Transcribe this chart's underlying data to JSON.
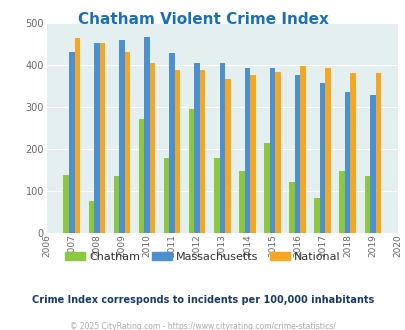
{
  "title": "Chatham Violent Crime Index",
  "title_color": "#1a6fba",
  "years": [
    2007,
    2008,
    2009,
    2010,
    2011,
    2012,
    2013,
    2014,
    2015,
    2016,
    2017,
    2018,
    2019
  ],
  "chatham": [
    137,
    76,
    135,
    272,
    178,
    296,
    178,
    147,
    214,
    120,
    82,
    147,
    136
  ],
  "massachusetts": [
    430,
    452,
    459,
    466,
    428,
    405,
    405,
    393,
    393,
    375,
    356,
    336,
    328
  ],
  "national": [
    465,
    453,
    430,
    405,
    387,
    387,
    367,
    376,
    383,
    397,
    394,
    381,
    381
  ],
  "chatham_color": "#8dc63f",
  "massachusetts_color": "#4d90d0",
  "national_color": "#f5a623",
  "bg_color": "#e4eff0",
  "ylim": [
    0,
    500
  ],
  "yticks": [
    0,
    100,
    200,
    300,
    400,
    500
  ],
  "subtitle": "Crime Index corresponds to incidents per 100,000 inhabitants",
  "subtitle_color": "#1a3a6b",
  "footer": "© 2025 CityRating.com - https://www.cityrating.com/crime-statistics/",
  "footer_color": "#aaaaaa",
  "legend_labels": [
    "Chatham",
    "Massachusetts",
    "National"
  ]
}
